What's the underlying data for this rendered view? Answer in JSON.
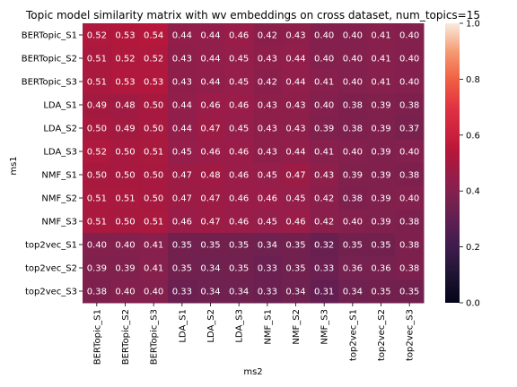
{
  "chart_data": {
    "type": "heatmap",
    "title": "Topic model similarity matrix with wv embeddings on cross dataset, num_topics=15",
    "xlabel": "ms2",
    "ylabel": "ms1",
    "rows": [
      "BERTopic_S1",
      "BERTopic_S2",
      "BERTopic_S3",
      "LDA_S1",
      "LDA_S2",
      "LDA_S3",
      "NMF_S1",
      "NMF_S2",
      "NMF_S3",
      "top2vec_S1",
      "top2vec_S2",
      "top2vec_S3"
    ],
    "columns": [
      "BERTopic_S1",
      "BERTopic_S2",
      "BERTopic_S3",
      "LDA_S1",
      "LDA_S2",
      "LDA_S3",
      "NMF_S1",
      "NMF_S2",
      "NMF_S3",
      "top2vec_S1",
      "top2vec_S2",
      "top2vec_S3"
    ],
    "values": [
      [
        0.52,
        0.53,
        0.54,
        0.44,
        0.44,
        0.46,
        0.42,
        0.43,
        0.4,
        0.4,
        0.41,
        0.4
      ],
      [
        0.51,
        0.52,
        0.52,
        0.43,
        0.44,
        0.45,
        0.43,
        0.44,
        0.4,
        0.4,
        0.41,
        0.4
      ],
      [
        0.51,
        0.53,
        0.53,
        0.43,
        0.44,
        0.45,
        0.42,
        0.44,
        0.41,
        0.4,
        0.41,
        0.4
      ],
      [
        0.49,
        0.48,
        0.5,
        0.44,
        0.46,
        0.46,
        0.43,
        0.43,
        0.4,
        0.38,
        0.39,
        0.38
      ],
      [
        0.5,
        0.49,
        0.5,
        0.44,
        0.47,
        0.45,
        0.43,
        0.43,
        0.39,
        0.38,
        0.39,
        0.37
      ],
      [
        0.52,
        0.5,
        0.51,
        0.45,
        0.46,
        0.46,
        0.43,
        0.44,
        0.41,
        0.4,
        0.39,
        0.4
      ],
      [
        0.5,
        0.5,
        0.5,
        0.47,
        0.48,
        0.46,
        0.45,
        0.47,
        0.43,
        0.39,
        0.39,
        0.38
      ],
      [
        0.51,
        0.51,
        0.5,
        0.47,
        0.47,
        0.46,
        0.46,
        0.45,
        0.42,
        0.38,
        0.39,
        0.4
      ],
      [
        0.51,
        0.5,
        0.51,
        0.46,
        0.47,
        0.46,
        0.45,
        0.46,
        0.42,
        0.4,
        0.39,
        0.38
      ],
      [
        0.4,
        0.4,
        0.41,
        0.35,
        0.35,
        0.35,
        0.34,
        0.35,
        0.32,
        0.35,
        0.35,
        0.38
      ],
      [
        0.39,
        0.39,
        0.41,
        0.35,
        0.34,
        0.35,
        0.33,
        0.35,
        0.33,
        0.36,
        0.36,
        0.38
      ],
      [
        0.38,
        0.4,
        0.4,
        0.33,
        0.34,
        0.34,
        0.33,
        0.34,
        0.31,
        0.34,
        0.35,
        0.35
      ]
    ],
    "value_format": "0.00",
    "colorbar": {
      "range": [
        0.0,
        1.0
      ],
      "ticks": [
        0.0,
        0.2,
        0.4,
        0.6,
        0.8,
        1.0
      ],
      "tick_labels": [
        "0.0",
        "0.2",
        "0.4",
        "0.6",
        "0.8",
        "1.0"
      ],
      "colormap": "rocket"
    }
  }
}
